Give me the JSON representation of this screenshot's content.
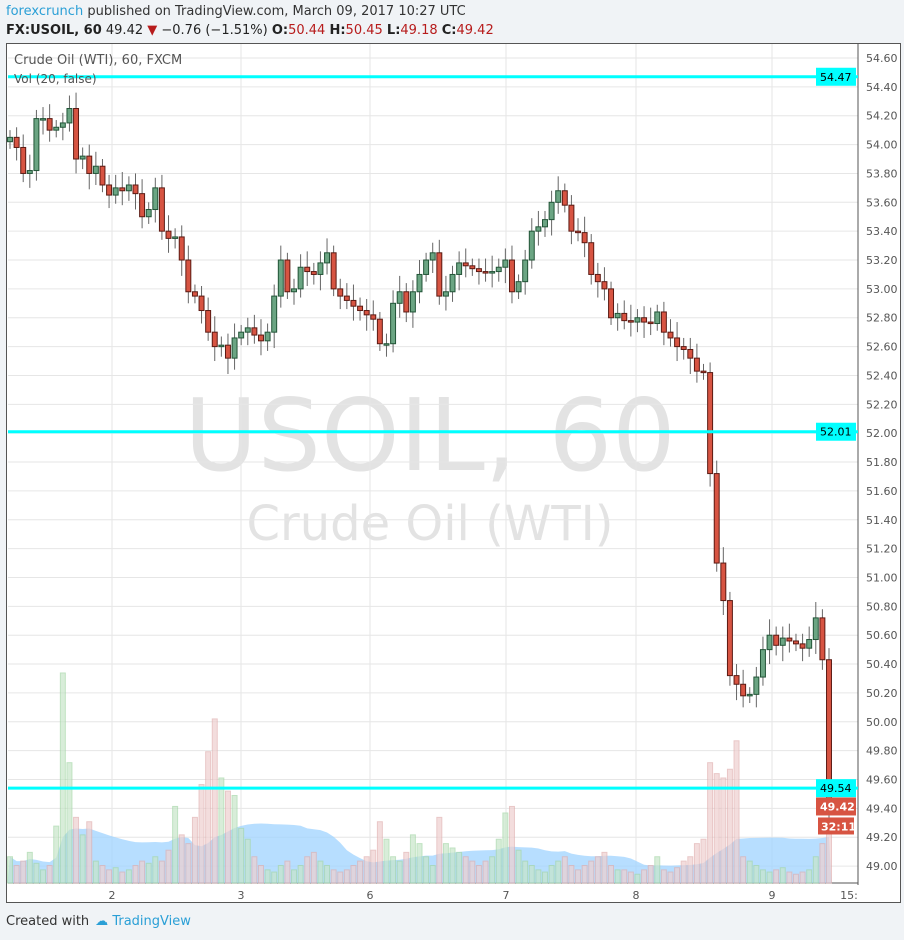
{
  "header": {
    "user": "forexcrunch",
    "published": "published on TradingView.com, March 09, 2017 10:27 UTC",
    "symbol": "FX:USOIL, 60",
    "last": "49.42",
    "change": "−0.76 (−1.51%)",
    "o_label": "O:",
    "o": "50.44",
    "h_label": "H:",
    "h": "50.45",
    "l_label": "L:",
    "l": "49.18",
    "c_label": "C:",
    "c": "49.42"
  },
  "legend": {
    "title": "Crude Oil (WTI), 60, FXCM",
    "vol": "Vol (20, false)"
  },
  "watermark": {
    "line1": "USOIL, 60",
    "line2": "Crude Oil (WTI)"
  },
  "footer": {
    "created": "Created with",
    "brand": "TradingView"
  },
  "chart_data": {
    "type": "candlestick",
    "ylim": [
      48.9,
      54.7
    ],
    "yticks": [
      "54.60",
      "54.40",
      "54.20",
      "54.00",
      "53.80",
      "53.60",
      "53.40",
      "53.20",
      "53.00",
      "52.80",
      "52.60",
      "52.40",
      "52.20",
      "52.00",
      "51.80",
      "51.60",
      "51.40",
      "51.20",
      "51.00",
      "50.80",
      "50.60",
      "50.40",
      "50.20",
      "50.00",
      "49.80",
      "49.60",
      "49.40",
      "49.20",
      "49.00"
    ],
    "xticks": [
      "2",
      "3",
      "6",
      "7",
      "8",
      "9",
      "15:"
    ],
    "hlines": [
      {
        "value": 54.47,
        "label": "54.47"
      },
      {
        "value": 52.01,
        "label": "52.01"
      },
      {
        "value": 49.54,
        "label": "49.54"
      }
    ],
    "last_price": {
      "value": 49.42,
      "label": "49.42",
      "countdown": "32:11"
    },
    "colors": {
      "up": "#6ba583",
      "down": "#d75442",
      "hline": "#00ffff",
      "vol_ma": "#9fd3ff"
    },
    "close": [
      54.05,
      53.98,
      53.8,
      53.82,
      54.18,
      54.18,
      54.1,
      54.12,
      54.15,
      54.25,
      53.9,
      53.92,
      53.8,
      53.85,
      53.72,
      53.65,
      53.7,
      53.68,
      53.72,
      53.66,
      53.5,
      53.55,
      53.7,
      53.4,
      53.35,
      53.36,
      53.2,
      52.98,
      52.95,
      52.85,
      52.7,
      52.6,
      52.61,
      52.52,
      52.66,
      52.7,
      52.73,
      52.68,
      52.64,
      52.7,
      52.95,
      53.2,
      52.98,
      53.0,
      53.15,
      53.12,
      53.1,
      53.18,
      53.25,
      53.0,
      52.95,
      52.92,
      52.88,
      52.85,
      52.82,
      52.79,
      52.62,
      52.62,
      52.9,
      52.98,
      52.84,
      52.98,
      53.1,
      53.2,
      53.25,
      52.95,
      52.98,
      53.1,
      53.18,
      53.16,
      53.14,
      53.12,
      53.11,
      53.12,
      53.15,
      53.2,
      52.98,
      53.05,
      53.2,
      53.4,
      53.43,
      53.48,
      53.6,
      53.68,
      53.58,
      53.4,
      53.39,
      53.32,
      53.1,
      53.05,
      53.0,
      52.8,
      52.83,
      52.78,
      52.77,
      52.8,
      52.77,
      52.76,
      52.84,
      52.7,
      52.66,
      52.6,
      52.58,
      52.52,
      52.43,
      52.42,
      51.72,
      51.1,
      50.84,
      50.32,
      50.26,
      50.18,
      50.19,
      50.31,
      50.5,
      50.6,
      50.53,
      50.58,
      50.56,
      50.54,
      50.51,
      50.57,
      50.72,
      50.43,
      49.42
    ],
    "open_first": 54.02,
    "volume": [
      12,
      8,
      10,
      14,
      9,
      6,
      8,
      26,
      96,
      55,
      30,
      22,
      28,
      10,
      8,
      6,
      7,
      5,
      6,
      8,
      10,
      9,
      12,
      10,
      15,
      35,
      22,
      18,
      30,
      45,
      60,
      75,
      48,
      42,
      40,
      25,
      20,
      12,
      8,
      6,
      5,
      8,
      10,
      6,
      8,
      12,
      14,
      10,
      8,
      6,
      5,
      6,
      8,
      10,
      12,
      15,
      28,
      20,
      12,
      10,
      14,
      22,
      18,
      12,
      8,
      30,
      18,
      16,
      14,
      12,
      10,
      8,
      10,
      12,
      20,
      32,
      35,
      15,
      10,
      8,
      6,
      5,
      8,
      10,
      12,
      8,
      6,
      8,
      10,
      12,
      14,
      8,
      6,
      6,
      5,
      4,
      6,
      8,
      12,
      6,
      5,
      7,
      10,
      12,
      18,
      20,
      55,
      50,
      48,
      52,
      65,
      12,
      10,
      8,
      6,
      5,
      6,
      7,
      5,
      4,
      5,
      6,
      12,
      18,
      28
    ]
  }
}
